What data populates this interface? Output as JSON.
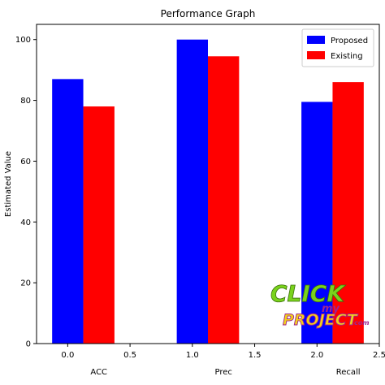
{
  "chart_data": {
    "type": "bar",
    "title": "Performance Graph",
    "xlabel": "",
    "ylabel": "Estimated Value",
    "xlim": [
      -0.25,
      2.5
    ],
    "ylim": [
      0,
      105
    ],
    "x_ticks": [
      0.0,
      0.5,
      1.0,
      1.5,
      2.0,
      2.5
    ],
    "x_tick_labels": [
      "0.0",
      "0.5",
      "1.0",
      "1.5",
      "2.0",
      "2.5"
    ],
    "y_ticks": [
      0,
      20,
      40,
      60,
      80,
      100
    ],
    "y_tick_labels": [
      "0",
      "20",
      "40",
      "60",
      "80",
      "100"
    ],
    "categories": [
      "ACC",
      "Prec",
      "Recall"
    ],
    "category_positions": [
      0.25,
      1.25,
      2.25
    ],
    "bar_width": 0.25,
    "series": [
      {
        "name": "Proposed",
        "color": "#0000ff",
        "x": [
          0.0,
          1.0,
          2.0
        ],
        "values": [
          87,
          100,
          79.5
        ]
      },
      {
        "name": "Existing",
        "color": "#ff0000",
        "x": [
          0.25,
          1.25,
          2.25
        ],
        "values": [
          78,
          94.5,
          86
        ]
      }
    ],
    "legend": {
      "position": "top-right"
    },
    "grid": false
  },
  "watermark": {
    "line1": "CLICK",
    "line2": "my",
    "line3": "PROJECT",
    "line3_suffix": ".com",
    "colors": {
      "green": "#7ad31c",
      "purple": "#a0248e",
      "yellow": "#f2d21a"
    }
  }
}
